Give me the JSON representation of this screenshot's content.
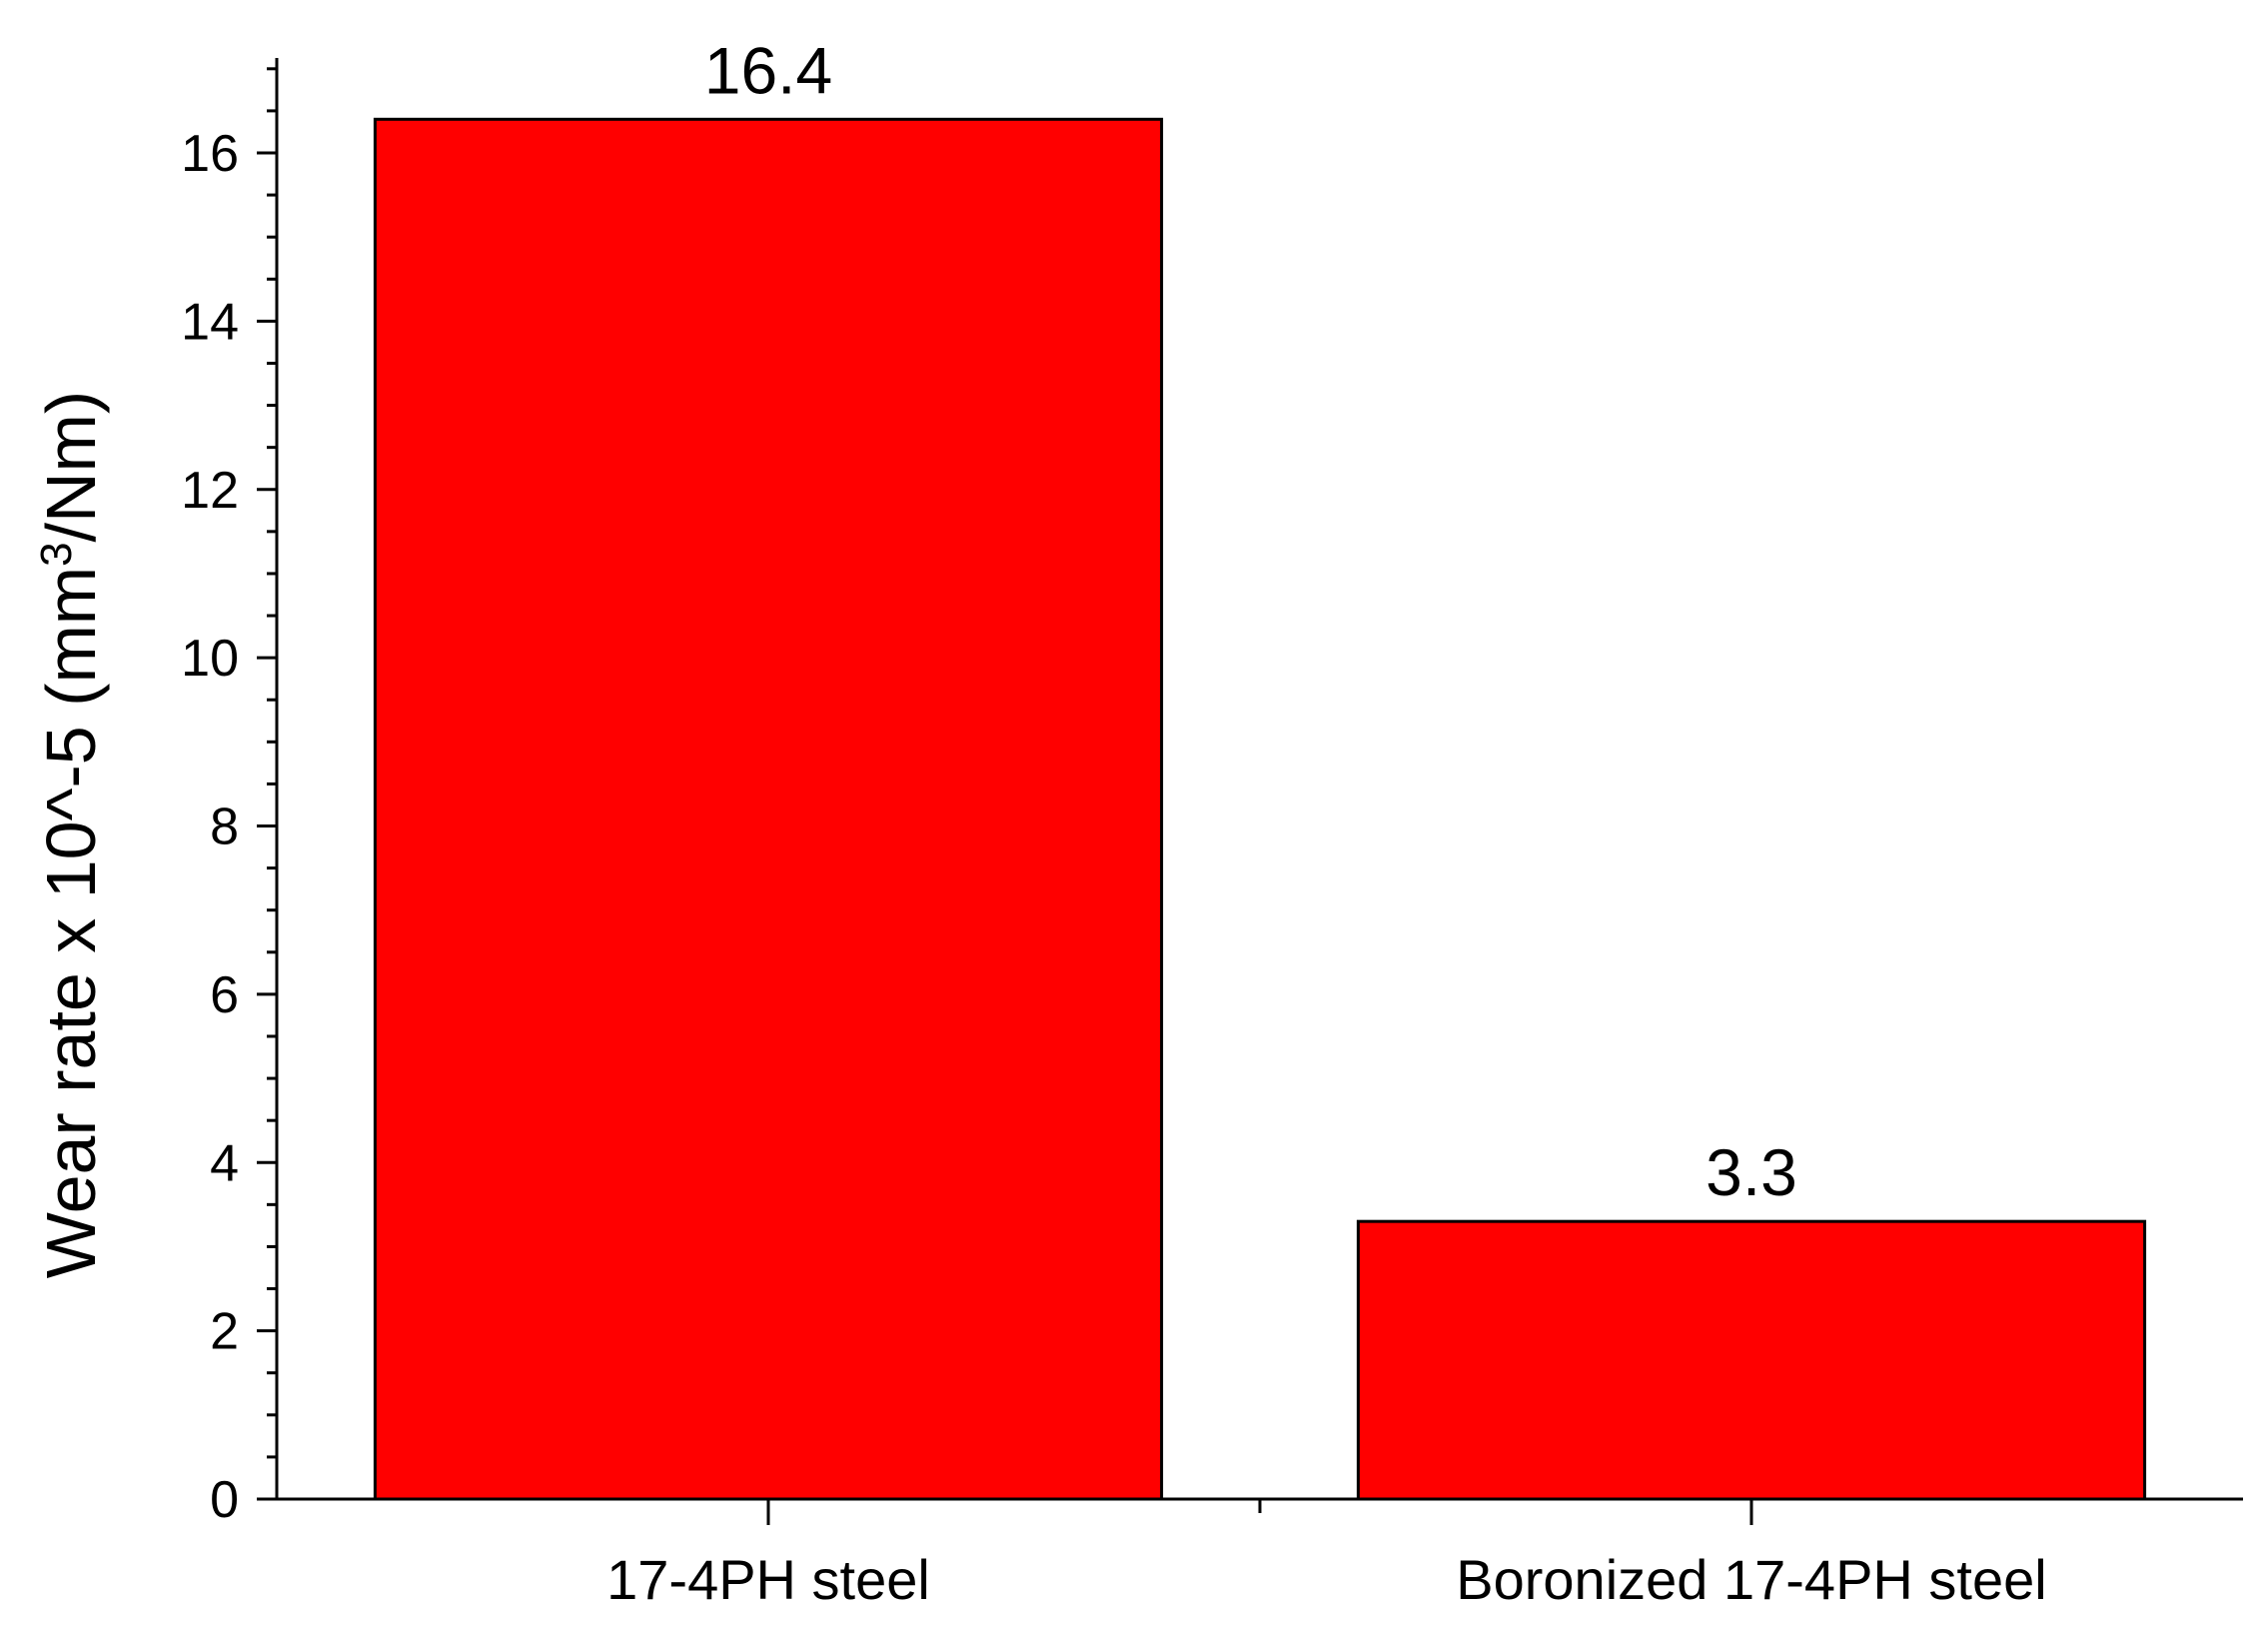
{
  "chart_data": {
    "type": "bar",
    "title": "",
    "xlabel": "",
    "ylabel": {
      "main": "Wear rate x 10^-5 (mm",
      "superscript": "3",
      "suffix": "/Nm)"
    },
    "categories": [
      "17-4PH steel",
      "Boronized 17-4PH steel"
    ],
    "values": [
      16.4,
      3.3
    ],
    "data_labels": [
      "16.4",
      "3.3"
    ],
    "ylim": [
      0,
      17
    ],
    "y_major_ticks": [
      0,
      2,
      4,
      6,
      8,
      10,
      12,
      14,
      16
    ],
    "y_tick_labels": [
      "0",
      "2",
      "4",
      "6",
      "8",
      "10",
      "12",
      "14",
      "16"
    ],
    "y_minor_step": 0.5,
    "bar_color": "#ff0000",
    "bar_edge_color": "#000000",
    "grid": false,
    "legend": "none"
  }
}
